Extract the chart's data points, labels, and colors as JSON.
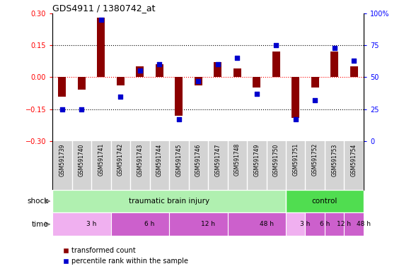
{
  "title": "GDS4911 / 1380742_at",
  "samples": [
    "GSM591739",
    "GSM591740",
    "GSM591741",
    "GSM591742",
    "GSM591743",
    "GSM591744",
    "GSM591745",
    "GSM591746",
    "GSM591747",
    "GSM591748",
    "GSM591749",
    "GSM591750",
    "GSM591751",
    "GSM591752",
    "GSM591753",
    "GSM591754"
  ],
  "red_bars": [
    -0.09,
    -0.06,
    0.28,
    -0.04,
    0.05,
    0.06,
    -0.18,
    -0.04,
    0.07,
    0.04,
    -0.05,
    0.12,
    -0.19,
    -0.05,
    0.12,
    0.05
  ],
  "blue_dots": [
    25,
    25,
    95,
    35,
    55,
    60,
    17,
    47,
    60,
    65,
    37,
    75,
    17,
    32,
    73,
    63
  ],
  "ylim_left": [
    -0.3,
    0.3
  ],
  "ylim_right": [
    0,
    100
  ],
  "yticks_left": [
    -0.3,
    -0.15,
    0,
    0.15,
    0.3
  ],
  "yticks_right": [
    0,
    25,
    50,
    75,
    100
  ],
  "bar_color": "#8B0000",
  "dot_color": "#0000CD",
  "bg_color": "#D3D3D3",
  "shock_tbi_color": "#B0F0B0",
  "shock_ctrl_color": "#50DD50",
  "time_3h_color": "#F0B0F0",
  "time_other_color": "#CC60CC",
  "legend_red": "transformed count",
  "legend_blue": "percentile rank within the sample",
  "shock_blocks": [
    {
      "label": "traumatic brain injury",
      "start": 0,
      "end": 12
    },
    {
      "label": "control",
      "start": 12,
      "end": 16
    }
  ],
  "time_blocks": [
    {
      "label": "3 h",
      "start": 0,
      "end": 4,
      "light": true
    },
    {
      "label": "6 h",
      "start": 4,
      "end": 8,
      "light": false
    },
    {
      "label": "12 h",
      "start": 8,
      "end": 12,
      "light": false
    },
    {
      "label": "48 h",
      "start": 12,
      "end": 16,
      "light": false
    },
    {
      "label": "3 h",
      "start": 12,
      "end": 13,
      "light": true
    },
    {
      "label": "6 h",
      "start": 13,
      "end": 14,
      "light": false
    },
    {
      "label": "12 h",
      "start": 14,
      "end": 15,
      "light": false
    },
    {
      "label": "48 h",
      "start": 15,
      "end": 16,
      "light": false
    }
  ]
}
